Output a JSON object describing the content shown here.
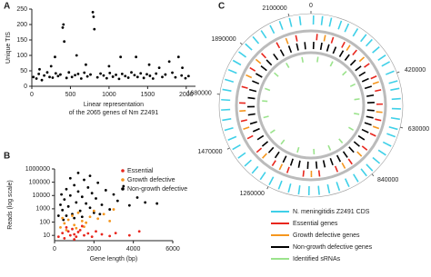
{
  "chart_data": [
    {
      "panel": "A",
      "type": "scatter",
      "ylabel": "Unique TIS",
      "xlabel": [
        "Linear representation",
        "of the 2065 genes of Nm Z2491"
      ],
      "x": [
        20,
        60,
        90,
        130,
        160,
        200,
        230,
        270,
        310,
        340,
        370,
        450,
        480,
        520,
        560,
        600,
        640,
        680,
        720,
        760,
        850,
        890,
        930,
        970,
        1010,
        1050,
        1090,
        1130,
        1170,
        1210,
        1250,
        1290,
        1330,
        1370,
        1410,
        1450,
        1490,
        1530,
        1570,
        1610,
        1690,
        1730,
        1820,
        1860,
        1940,
        1990,
        2030,
        400,
        410,
        420,
        790,
        800,
        810,
        300,
        580,
        250,
        1150,
        1350,
        1520,
        1780,
        1900,
        1950,
        1650,
        100,
        700,
        1000
      ],
      "values": [
        30,
        25,
        40,
        20,
        35,
        45,
        30,
        28,
        42,
        33,
        38,
        27,
        45,
        30,
        36,
        40,
        25,
        44,
        32,
        38,
        29,
        41,
        35,
        26,
        43,
        31,
        37,
        24,
        40,
        33,
        28,
        45,
        36,
        30,
        42,
        27,
        39,
        34,
        25,
        41,
        30,
        38,
        44,
        29,
        35,
        26,
        33,
        190,
        200,
        145,
        240,
        225,
        185,
        95,
        100,
        65,
        95,
        95,
        70,
        80,
        95,
        60,
        60,
        55,
        70,
        65
      ],
      "color": "#000000",
      "xlim": [
        0,
        2120
      ],
      "xticks": [
        0,
        500,
        1000,
        1500,
        2000
      ],
      "ylim": [
        0,
        250
      ],
      "yticks": [
        0,
        50,
        100,
        150,
        200,
        250
      ]
    },
    {
      "panel": "B",
      "type": "scatter",
      "log_y": true,
      "legend": "upper right",
      "xlabel": "Gene length (bp)",
      "ylabel": "Reads (log scale)",
      "xlim": [
        0,
        6000
      ],
      "xticks": [
        0,
        2000,
        4000,
        6000
      ],
      "ylim": [
        4,
        1000000
      ],
      "yticks": [
        10,
        100,
        1000,
        10000,
        100000,
        1000000
      ],
      "series": [
        {
          "name": "Essential",
          "color": "#e8261d",
          "x": [
            200,
            400,
            500,
            700,
            800,
            900,
            1000,
            1100,
            1200,
            1300,
            1500,
            1700,
            1900,
            2100,
            2400,
            2800,
            3100,
            3800,
            4300,
            600,
            1400,
            1000
          ],
          "values": [
            8,
            15,
            6,
            20,
            10,
            30,
            12,
            8,
            18,
            25,
            10,
            14,
            8,
            20,
            12,
            9,
            15,
            10,
            20,
            40,
            50,
            5
          ]
        },
        {
          "name": "Growth defective",
          "color": "#f5961e",
          "x": [
            300,
            500,
            700,
            900,
            1000,
            1200,
            1400,
            1600,
            1800,
            2000,
            2200,
            2500,
            2800,
            3000,
            600,
            1100,
            1500,
            400
          ],
          "values": [
            40,
            80,
            150,
            300,
            60,
            500,
            120,
            90,
            250,
            700,
            180,
            400,
            120,
            900,
            25,
            35,
            45,
            200
          ]
        },
        {
          "name": "Non-growth defective",
          "color": "#000000",
          "x": [
            200,
            300,
            400,
            500,
            600,
            700,
            800,
            900,
            1000,
            1100,
            1200,
            1300,
            1400,
            1500,
            1600,
            1700,
            1800,
            1900,
            2000,
            2100,
            2200,
            2400,
            2600,
            2800,
            3000,
            3200,
            3500,
            3800,
            4200,
            4600,
            800,
            1200,
            600,
            1000,
            1400,
            350,
            450,
            1800,
            2300,
            5200
          ],
          "values": [
            300,
            2000,
            800,
            5000,
            30000,
            1500,
            10000,
            400,
            60000,
            3000,
            20000,
            700,
            8000,
            150000,
            2500,
            40000,
            1200,
            15000,
            500,
            6000,
            90000,
            2000,
            25000,
            900,
            12000,
            4000,
            50000,
            1800,
            7000,
            3000,
            200000,
            500000,
            300,
            200,
            250,
            12000,
            150,
            300000,
            400,
            2500
          ]
        }
      ]
    },
    {
      "panel": "C",
      "type": "circos",
      "xlim": [
        0,
        2184000
      ],
      "xticks": [
        0,
        420000,
        630000,
        840000,
        1260000,
        1470000,
        1680000,
        1890000,
        2100000
      ],
      "tracks": [
        {
          "name": "N. meningitidis Z2491 CDS",
          "color": "#3fd0e8",
          "positions": [
            10000,
            45000,
            80000,
            120000,
            150000,
            190000,
            230000,
            260000,
            300000,
            340000,
            370000,
            410000,
            450000,
            480000,
            520000,
            560000,
            600000,
            640000,
            670000,
            710000,
            750000,
            790000,
            830000,
            860000,
            900000,
            940000,
            980000,
            1020000,
            1060000,
            1100000,
            1140000,
            1180000,
            1220000,
            1260000,
            1300000,
            1340000,
            1380000,
            1420000,
            1460000,
            1500000,
            1540000,
            1580000,
            1620000,
            1660000,
            1700000,
            1740000,
            1780000,
            1820000,
            1860000,
            1900000,
            1940000,
            1980000,
            2020000,
            2060000,
            2100000,
            2140000
          ]
        },
        {
          "name": "Essential genes",
          "color": "#e8261d",
          "positions": [
            30000,
            110000,
            170000,
            240000,
            330000,
            400000,
            470000,
            540000,
            620000,
            700000,
            780000,
            880000,
            960000,
            1050000,
            1130000,
            1210000,
            1290000,
            1390000,
            1470000,
            1560000,
            1650000,
            1730000,
            1830000,
            1920000,
            2010000,
            2110000
          ]
        },
        {
          "name": "Growth defective genes",
          "color": "#f5961e",
          "positions": [
            70000,
            200000,
            290000,
            430000,
            580000,
            660000,
            820000,
            920000,
            1090000,
            1250000,
            1350000,
            1520000,
            1610000,
            1790000,
            1880000,
            2060000
          ]
        },
        {
          "name": "Non-growth defective genes",
          "color": "#000000",
          "positions": [
            15000,
            60000,
            100000,
            140000,
            185000,
            225000,
            270000,
            315000,
            355000,
            395000,
            440000,
            490000,
            530000,
            575000,
            615000,
            655000,
            700000,
            745000,
            790000,
            835000,
            880000,
            925000,
            970000,
            1015000,
            1060000,
            1110000,
            1160000,
            1205000,
            1250000,
            1300000,
            1345000,
            1395000,
            1440000,
            1490000,
            1535000,
            1585000,
            1630000,
            1680000,
            1725000,
            1775000,
            1820000,
            1870000,
            1915000,
            1965000,
            2010000,
            2060000,
            2105000,
            2150000
          ]
        },
        {
          "name": "Identified sRNAs",
          "color": "#9be38c",
          "positions": [
            50000,
            160000,
            280000,
            390000,
            500000,
            610000,
            730000,
            850000,
            950000,
            1070000,
            1190000,
            1320000,
            1430000,
            1550000,
            1670000,
            1760000,
            1890000,
            2000000,
            2120000
          ]
        }
      ]
    }
  ]
}
